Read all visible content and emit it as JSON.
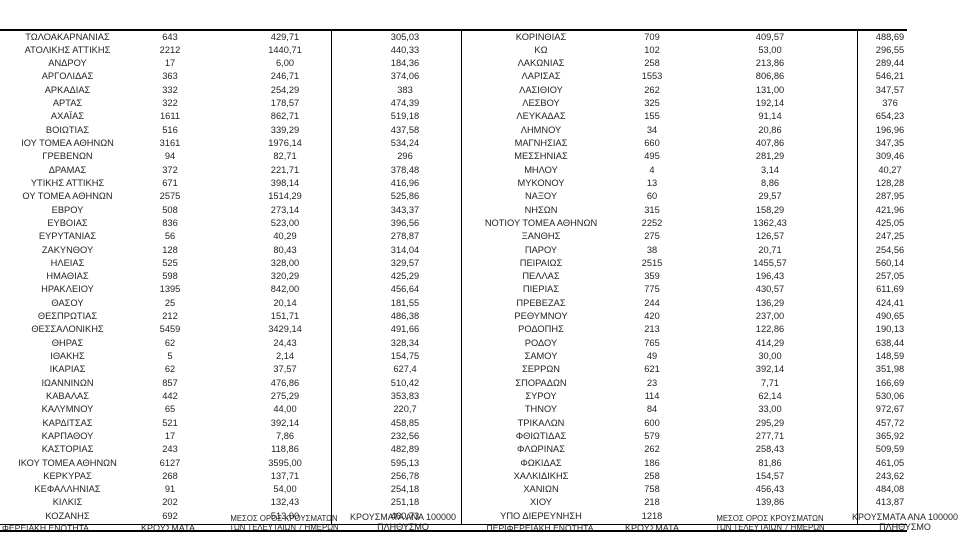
{
  "left_table": {
    "headers": {
      "region": "ΦΕΡΕΙΑΚΗ ΕΝΟΤΗΤΑ",
      "cases": "ΚΡΟΥΣΜΑΤΑ",
      "avg_line1": "ΜΕΣΟΣ ΟΡΟΣ ΚΡΟΥΣΜΑΤΩΝ",
      "avg_line2": "ΤΩΝ ΤΕΛΕΥΤΑΙΩΝ 7 ΗΜΕΡΩΝ",
      "per100k_line1": "ΚΡΟΥΣΜΑΤΑ ΑΝΑ 100000",
      "per100k_line2": "ΠΛΗΘΥΣΜΟ"
    },
    "rows": [
      [
        "ΤΩΛΟΑΚΑΡΝΑΝΙΑΣ",
        "643",
        "429,71",
        "305,03"
      ],
      [
        "ΑΤΟΛΙΚΗΣ ΑΤΤΙΚΗΣ",
        "2212",
        "1440,71",
        "440,33"
      ],
      [
        "ΑΝΔΡΟΥ",
        "17",
        "6,00",
        "184,36"
      ],
      [
        "ΑΡΓΟΛΙΔΑΣ",
        "363",
        "246,71",
        "374,06"
      ],
      [
        "ΑΡΚΑΔΙΑΣ",
        "332",
        "254,29",
        "383"
      ],
      [
        "ΑΡΤΑΣ",
        "322",
        "178,57",
        "474,39"
      ],
      [
        "ΑΧΑΪΑΣ",
        "1611",
        "862,71",
        "519,18"
      ],
      [
        "ΒΟΙΩΤΙΑΣ",
        "516",
        "339,29",
        "437,58"
      ],
      [
        "ΙΟΥ ΤΟΜΕΑ ΑΘΗΝΩΝ",
        "3161",
        "1976,14",
        "534,24"
      ],
      [
        "ΓΡΕΒΕΝΩΝ",
        "94",
        "82,71",
        "296"
      ],
      [
        "ΔΡΑΜΑΣ",
        "372",
        "221,71",
        "378,48"
      ],
      [
        "ΥΤΙΚΗΣ ΑΤΤΙΚΗΣ",
        "671",
        "398,14",
        "416,96"
      ],
      [
        "ΟΥ ΤΟΜΕΑ ΑΘΗΝΩΝ",
        "2575",
        "1514,29",
        "525,86"
      ],
      [
        "ΕΒΡΟΥ",
        "508",
        "273,14",
        "343,37"
      ],
      [
        "ΕΥΒΟΙΑΣ",
        "836",
        "523,00",
        "396,56"
      ],
      [
        "ΕΥΡΥΤΑΝΙΑΣ",
        "56",
        "40,29",
        "278,87"
      ],
      [
        "ΖΑΚΥΝΘΟΥ",
        "128",
        "80,43",
        "314,04"
      ],
      [
        "ΗΛΕΙΑΣ",
        "525",
        "328,00",
        "329,57"
      ],
      [
        "ΗΜΑΘΙΑΣ",
        "598",
        "320,29",
        "425,29"
      ],
      [
        "ΗΡΑΚΛΕΙΟΥ",
        "1395",
        "842,00",
        "456,64"
      ],
      [
        "ΘΑΣΟΥ",
        "25",
        "20,14",
        "181,55"
      ],
      [
        "ΘΕΣΠΡΩΤΙΑΣ",
        "212",
        "151,71",
        "486,38"
      ],
      [
        "ΘΕΣΣΑΛΟΝΙΚΗΣ",
        "5459",
        "3429,14",
        "491,66"
      ],
      [
        "ΘΗΡΑΣ",
        "62",
        "24,43",
        "328,34"
      ],
      [
        "ΙΘΑΚΗΣ",
        "5",
        "2,14",
        "154,75"
      ],
      [
        "ΙΚΑΡΙΑΣ",
        "62",
        "37,57",
        "627,4"
      ],
      [
        "ΙΩΑΝΝΙΝΩΝ",
        "857",
        "476,86",
        "510,42"
      ],
      [
        "ΚΑΒΑΛΑΣ",
        "442",
        "275,29",
        "353,83"
      ],
      [
        "ΚΑΛΥΜΝΟΥ",
        "65",
        "44,00",
        "220,7"
      ],
      [
        "ΚΑΡΔΙΤΣΑΣ",
        "521",
        "392,14",
        "458,85"
      ],
      [
        "ΚΑΡΠΑΘΟΥ",
        "17",
        "7,86",
        "232,56"
      ],
      [
        "ΚΑΣΤΟΡΙΑΣ",
        "243",
        "118,86",
        "482,89"
      ],
      [
        "ΙΚΟΥ ΤΟΜΕΑ ΑΘΗΝΩΝ",
        "6127",
        "3595,00",
        "595,13"
      ],
      [
        "ΚΕΡΚΥΡΑΣ",
        "268",
        "137,71",
        "256,78"
      ],
      [
        "ΚΕΦΑΛΛΗΝΙΑΣ",
        "91",
        "54,00",
        "254,18"
      ],
      [
        "ΚΙΛΚΙΣ",
        "202",
        "132,43",
        "251,18"
      ],
      [
        "ΚΟΖΑΝΗΣ",
        "692",
        "513,00",
        "460,73"
      ]
    ]
  },
  "right_table": {
    "headers": {
      "region": "ΠΕΡΙΦΕΡΕΙΑΚΗ ΕΝΟΤΗΤΑ",
      "cases": "ΚΡΟΥΣΜΑΤΑ",
      "avg_line1": "ΜΕΣΟΣ ΟΡΟΣ ΚΡΟΥΣΜΑΤΩΝ",
      "avg_line2": "ΤΩΝ ΤΕΛΕΥΤΑΙΩΝ 7 ΗΜΕΡΩΝ",
      "per100k_line1": "ΚΡΟΥΣΜΑΤΑ ΑΝΑ 100000",
      "per100k_line2": "ΠΛΗΘΥΣΜΟ"
    },
    "rows": [
      [
        "ΚΟΡΙΝΘΙΑΣ",
        "709",
        "409,57",
        "488,69"
      ],
      [
        "ΚΩ",
        "102",
        "53,00",
        "296,55"
      ],
      [
        "ΛΑΚΩΝΙΑΣ",
        "258",
        "213,86",
        "289,44"
      ],
      [
        "ΛΑΡΙΣΑΣ",
        "1553",
        "806,86",
        "546,21"
      ],
      [
        "ΛΑΣΙΘΙΟΥ",
        "262",
        "131,00",
        "347,57"
      ],
      [
        "ΛΕΣΒΟΥ",
        "325",
        "192,14",
        "376"
      ],
      [
        "ΛΕΥΚΑΔΑΣ",
        "155",
        "91,14",
        "654,23"
      ],
      [
        "ΛΗΜΝΟΥ",
        "34",
        "20,86",
        "196,96"
      ],
      [
        "ΜΑΓΝΗΣΙΑΣ",
        "660",
        "407,86",
        "347,35"
      ],
      [
        "ΜΕΣΣΗΝΙΑΣ",
        "495",
        "281,29",
        "309,46"
      ],
      [
        "ΜΗΛΟΥ",
        "4",
        "3,14",
        "40,27"
      ],
      [
        "ΜΥΚΟΝΟΥ",
        "13",
        "8,86",
        "128,28"
      ],
      [
        "ΝΑΞΟΥ",
        "60",
        "29,57",
        "287,95"
      ],
      [
        "ΝΗΣΩΝ",
        "315",
        "158,29",
        "421,96"
      ],
      [
        "ΝΟΤΙΟΥ ΤΟΜΕΑ ΑΘΗΝΩΝ",
        "2252",
        "1362,43",
        "425,05"
      ],
      [
        "ΞΑΝΘΗΣ",
        "275",
        "126,57",
        "247,25"
      ],
      [
        "ΠΑΡΟΥ",
        "38",
        "20,71",
        "254,56"
      ],
      [
        "ΠΕΙΡΑΙΩΣ",
        "2515",
        "1455,57",
        "560,14"
      ],
      [
        "ΠΕΛΛΑΣ",
        "359",
        "196,43",
        "257,05"
      ],
      [
        "ΠΙΕΡΙΑΣ",
        "775",
        "430,57",
        "611,69"
      ],
      [
        "ΠΡΕΒΕΖΑΣ",
        "244",
        "136,29",
        "424,41"
      ],
      [
        "ΡΕΘΥΜΝΟΥ",
        "420",
        "237,00",
        "490,65"
      ],
      [
        "ΡΟΔΟΠΗΣ",
        "213",
        "122,86",
        "190,13"
      ],
      [
        "ΡΟΔΟΥ",
        "765",
        "414,29",
        "638,44"
      ],
      [
        "ΣΑΜΟΥ",
        "49",
        "30,00",
        "148,59"
      ],
      [
        "ΣΕΡΡΩΝ",
        "621",
        "392,14",
        "351,98"
      ],
      [
        "ΣΠΟΡΑΔΩΝ",
        "23",
        "7,71",
        "166,69"
      ],
      [
        "ΣΥΡΟΥ",
        "114",
        "62,14",
        "530,06"
      ],
      [
        "ΤΗΝΟΥ",
        "84",
        "33,00",
        "972,67"
      ],
      [
        "ΤΡΙΚΑΛΩΝ",
        "600",
        "295,29",
        "457,72"
      ],
      [
        "ΦΘΙΩΤΙΔΑΣ",
        "579",
        "277,71",
        "365,92"
      ],
      [
        "ΦΛΩΡΙΝΑΣ",
        "262",
        "258,43",
        "509,59"
      ],
      [
        "ΦΩΚΙΔΑΣ",
        "186",
        "81,86",
        "461,05"
      ],
      [
        "ΧΑΛΚΙΔΙΚΗΣ",
        "258",
        "154,57",
        "243,62"
      ],
      [
        "ΧΑΝΙΩΝ",
        "758",
        "456,43",
        "484,08"
      ],
      [
        "ΧΙΟΥ",
        "218",
        "139,86",
        "413,87"
      ],
      [
        "ΥΠΟ ΔΙΕΡΕΥΝΗΣΗ",
        "1218",
        "",
        ""
      ]
    ]
  }
}
